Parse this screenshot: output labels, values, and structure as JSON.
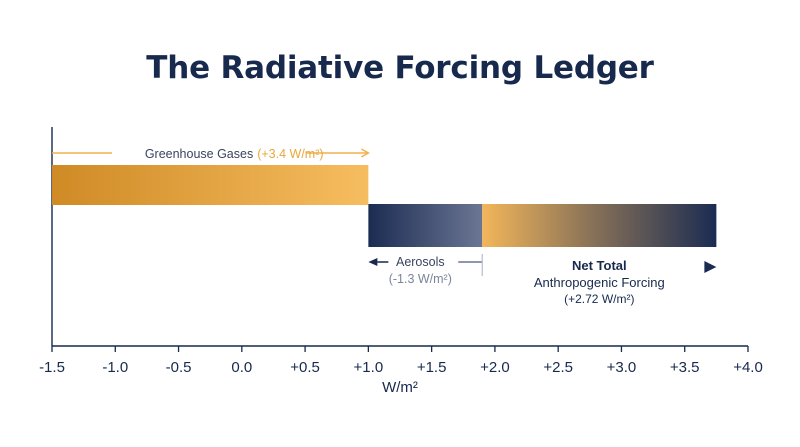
{
  "chart_data": {
    "type": "bar",
    "title": "The Radiative Forcing Ledger",
    "xlabel": "W/m²",
    "xlim": [
      -1.5,
      4.0
    ],
    "xticks": [
      -1.5,
      -1.0,
      -0.5,
      0.0,
      0.5,
      1.0,
      1.5,
      2.0,
      2.5,
      3.0,
      3.5,
      4.0
    ],
    "xtick_labels": [
      "-1.5",
      "-1.0",
      "-0.5",
      "0.0",
      "+0.5",
      "+1.0",
      "+1.5",
      "+2.0",
      "+2.5",
      "+3.0",
      "+3.5",
      "+4.0"
    ],
    "grid": false,
    "bars": [
      {
        "name": "Greenhouse Gases",
        "start": -1.5,
        "end": 1.0,
        "value": 3.4,
        "label": "Greenhouse Gases",
        "value_label": "(+3.4 W/m²)"
      },
      {
        "name": "Aerosols",
        "start": 1.0,
        "end": 1.9,
        "value": -1.3,
        "label": "Aerosols",
        "value_label": "(-1.3 W/m²)"
      },
      {
        "name": "Net Total Anthropogenic Forcing",
        "start": 1.9,
        "end": 3.75,
        "value": 2.72,
        "label_line1": "Net Total",
        "label_line2": "Anthropogenic Forcing",
        "value_label": "(+2.72 W/m²)"
      }
    ],
    "colors": {
      "navy": "#17294d",
      "amber_dark": "#d08c26",
      "amber_light": "#f5bb5e",
      "slate": "#6b7592"
    }
  }
}
